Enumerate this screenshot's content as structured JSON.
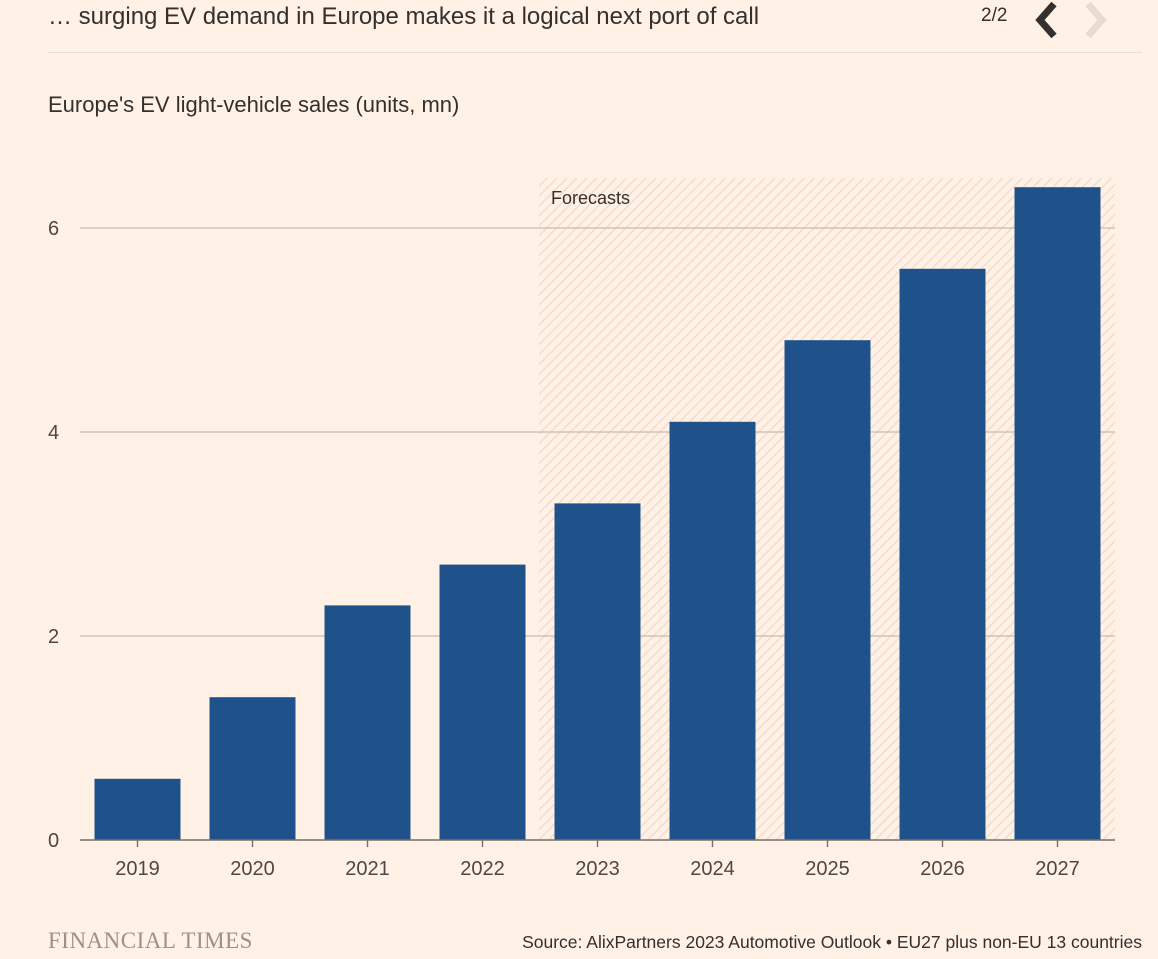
{
  "header": {
    "title": "… surging EV demand in Europe makes it a logical next port of call",
    "pager": "2/2",
    "prev_icon": "chevron-left-icon",
    "next_icon": "chevron-right-icon"
  },
  "footer": {
    "brand": "FINANCIAL TIMES",
    "source": "Source: AlixPartners 2023 Automotive Outlook • EU27 plus non-EU 13 countries"
  },
  "colors": {
    "bar": "#1f528a",
    "background": "#fff1e5",
    "grid": "#c8bbb0",
    "axis": "#7a6f68",
    "forecast_hatch": "#f1ddd0",
    "nav_active": "#33302e",
    "nav_disabled": "#e7dcd2"
  },
  "chart_data": {
    "type": "bar",
    "title": "Europe's EV light-vehicle sales (units, mn)",
    "xlabel": "",
    "ylabel": "",
    "categories": [
      "2019",
      "2020",
      "2021",
      "2022",
      "2023",
      "2024",
      "2025",
      "2026",
      "2027"
    ],
    "values": [
      0.6,
      1.4,
      2.3,
      2.7,
      3.3,
      4.1,
      4.9,
      5.6,
      6.4
    ],
    "ylim": [
      0,
      6.5
    ],
    "yticks": [
      0,
      2,
      4,
      6
    ],
    "grid": true,
    "annotation": {
      "label": "Forecasts",
      "from_category": "2023",
      "to_category": "2027"
    }
  }
}
